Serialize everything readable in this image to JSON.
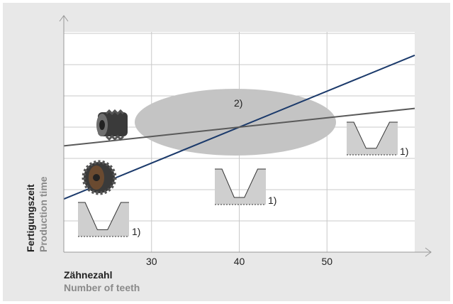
{
  "chart_data": {
    "type": "line",
    "x_label": "Zähnezahl",
    "x_label_en": "Number of teeth",
    "y_label": "Fertigungszeit",
    "y_label_en": "Production time",
    "xlim": [
      20,
      60
    ],
    "xticks": [
      30,
      40,
      50
    ],
    "ylim": [
      0,
      7
    ],
    "yticks": [
      1,
      2,
      3,
      4,
      5,
      6,
      7
    ],
    "grid": true,
    "x": [
      20,
      60
    ],
    "series": [
      {
        "color": "#1b3a6b",
        "values": [
          1.7,
          6.3
        ]
      },
      {
        "color": "#5a5a5a",
        "values": [
          3.4,
          4.6
        ]
      }
    ],
    "annotations": [
      "2)",
      "1)",
      "1)",
      "1)"
    ]
  }
}
